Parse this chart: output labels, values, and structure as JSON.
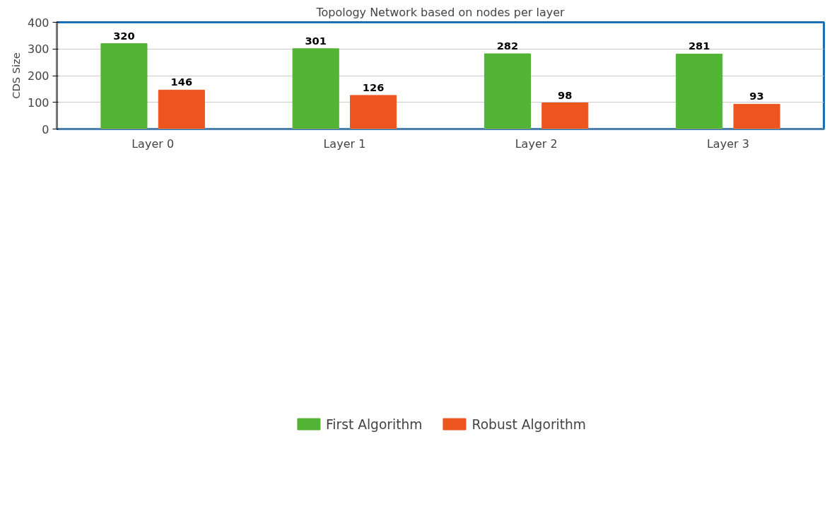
{
  "chart_data": {
    "type": "bar",
    "title": "Topology Network based on nodes per layer",
    "ylabel": "CDS Size",
    "categories": [
      "Layer 0",
      "Layer 1",
      "Layer 2",
      "Layer 3"
    ],
    "series": [
      {
        "name": "First Algorithm",
        "color": "#52b435",
        "values": [
          320,
          301,
          282,
          281
        ]
      },
      {
        "name": "Robust Algorithm",
        "color": "#ec561e",
        "values": [
          146,
          126,
          98,
          93
        ]
      }
    ],
    "ylim": [
      0,
      400
    ],
    "yticks": [
      0,
      100,
      200,
      300,
      400
    ],
    "grid": "y",
    "legend": "bottom",
    "data_labels": true
  }
}
